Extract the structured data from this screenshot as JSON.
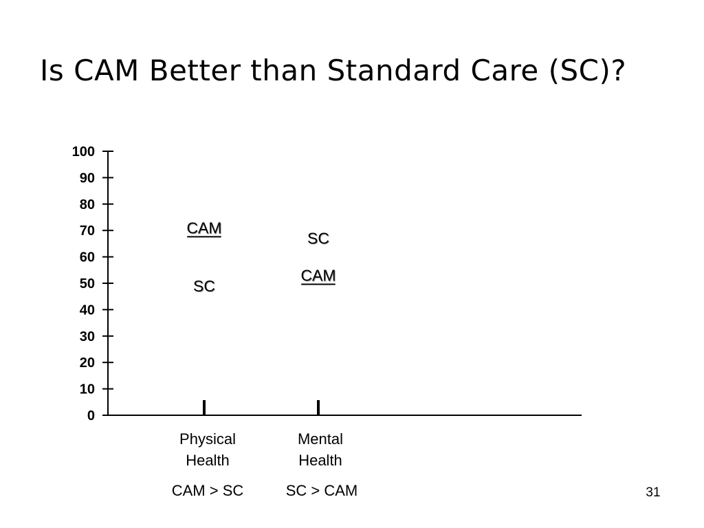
{
  "slide": {
    "title": "Is CAM Better than Standard Care (SC)?",
    "page_number": "31"
  },
  "chart_data": {
    "type": "scatter",
    "title": "Is CAM Better than Standard Care (SC)?",
    "ylim": [
      0,
      100
    ],
    "y_ticks": [
      "0",
      "10",
      "20",
      "30",
      "40",
      "50",
      "60",
      "70",
      "80",
      "90",
      "100"
    ],
    "categories": [
      {
        "lines": [
          "Physical",
          "Health"
        ],
        "comparison": "CAM > SC"
      },
      {
        "lines": [
          "Mental",
          "Health"
        ],
        "comparison": "SC > CAM"
      }
    ],
    "points": [
      {
        "category": 0,
        "label": "CAM",
        "value": 71,
        "underline": true
      },
      {
        "category": 0,
        "label": "SC",
        "value": 49,
        "underline": false
      },
      {
        "category": 1,
        "label": "SC",
        "value": 67,
        "underline": false
      },
      {
        "category": 1,
        "label": "CAM",
        "value": 53,
        "underline": true
      }
    ],
    "grid": false,
    "legend": "none"
  }
}
